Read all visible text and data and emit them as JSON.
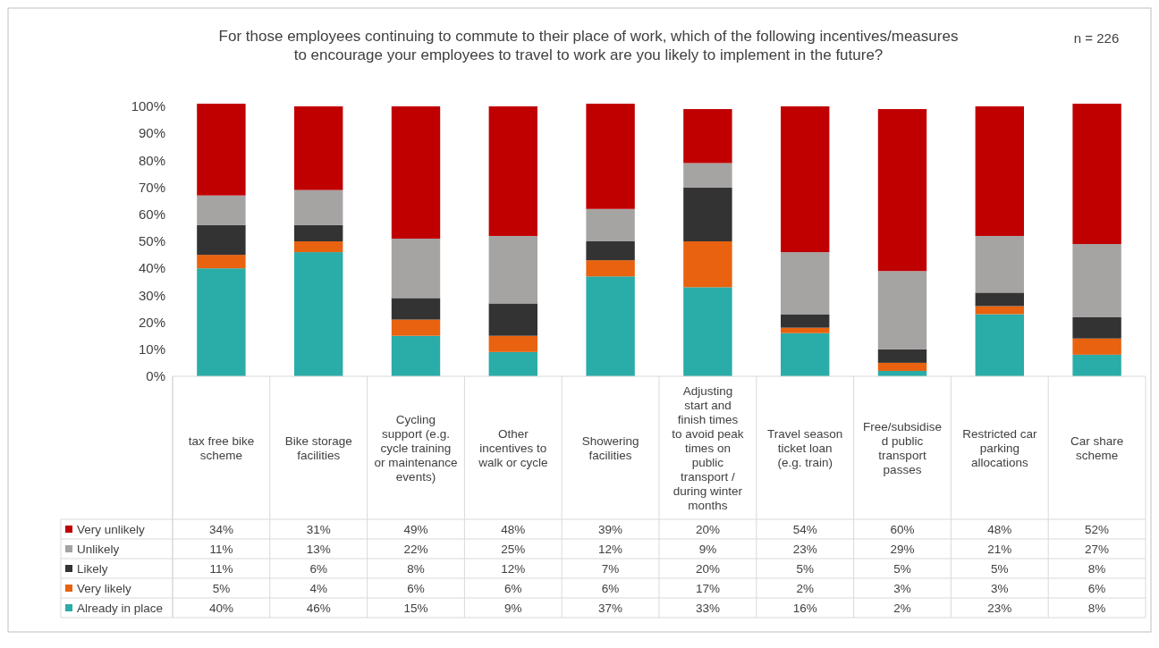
{
  "chart_data": {
    "type": "bar",
    "stacked": true,
    "title": "For those employees continuing to commute to their place of work, which of the following incentives/measures to encourage your employees to travel to work are you likely to implement in the future?",
    "annotations": [
      "n = 226"
    ],
    "categories": [
      "tax free bike scheme",
      "Bike storage facilities",
      "Cycling support (e.g. cycle training or maintenance events)",
      "Other incentives to walk or cycle",
      "Showering facilities",
      "Adjusting start and finish times to avoid peak times on public transport / during winter months",
      "Travel season ticket loan (e.g. train)",
      "Free/subsidised public transport passes",
      "Restricted car parking allocations",
      "Car share scheme"
    ],
    "series": [
      {
        "name": "Already in place",
        "color": "#2aaca8",
        "values": [
          40,
          46,
          15,
          9,
          37,
          33,
          16,
          2,
          23,
          8
        ],
        "value_labels": [
          "40%",
          "46%",
          "15%",
          "9%",
          "37%",
          "33%",
          "16%",
          "2%",
          "23%",
          "8%"
        ]
      },
      {
        "name": "Very likely",
        "color": "#e8620f",
        "values": [
          5,
          4,
          6,
          6,
          6,
          17,
          2,
          3,
          3,
          6
        ],
        "value_labels": [
          "5%",
          "4%",
          "6%",
          "6%",
          "6%",
          "17%",
          "2%",
          "3%",
          "3%",
          "6%"
        ]
      },
      {
        "name": "Likely",
        "color": "#333333",
        "values": [
          11,
          6,
          8,
          12,
          7,
          20,
          5,
          5,
          5,
          8
        ],
        "value_labels": [
          "11%",
          "6%",
          "8%",
          "12%",
          "7%",
          "20%",
          "5%",
          "5%",
          "5%",
          "8%"
        ]
      },
      {
        "name": "Unlikely",
        "color": "#a6a3a3",
        "values": [
          11,
          13,
          22,
          25,
          12,
          9,
          23,
          29,
          21,
          27
        ],
        "value_labels": [
          "11%",
          "13%",
          "22%",
          "25%",
          "12%",
          "9%",
          "23%",
          "29%",
          "21%",
          "27%"
        ]
      },
      {
        "name": "Very unlikely",
        "color": "#c00000",
        "values": [
          34,
          31,
          49,
          48,
          39,
          20,
          54,
          60,
          48,
          52
        ],
        "value_labels": [
          "34%",
          "31%",
          "49%",
          "48%",
          "39%",
          "20%",
          "54%",
          "60%",
          "48%",
          "52%"
        ]
      }
    ],
    "ylim": [
      0,
      101
    ],
    "yticks": [
      {
        "value": 0,
        "label": "0%"
      },
      {
        "value": 10,
        "label": "10%"
      },
      {
        "value": 20,
        "label": "20%"
      },
      {
        "value": 30,
        "label": "30%"
      },
      {
        "value": 40,
        "label": "40%"
      },
      {
        "value": 50,
        "label": "50%"
      },
      {
        "value": 60,
        "label": "60%"
      },
      {
        "value": 70,
        "label": "70%"
      },
      {
        "value": 80,
        "label": "80%"
      },
      {
        "value": 90,
        "label": "90%"
      },
      {
        "value": 100,
        "label": "100%"
      }
    ],
    "legend": "bottom"
  }
}
